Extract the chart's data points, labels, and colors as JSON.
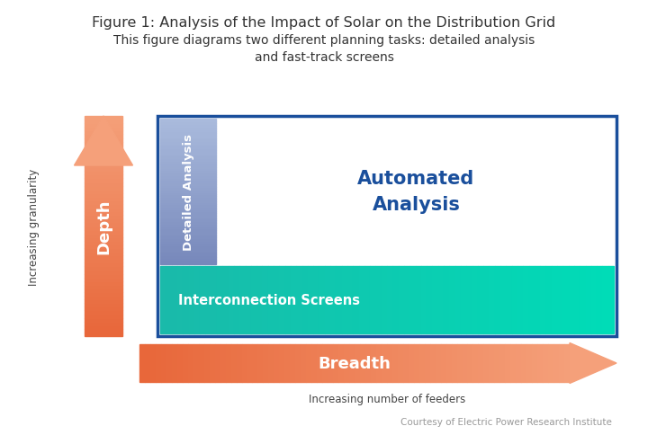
{
  "title": "Figure 1: Analysis of the Impact of Solar on the Distribution Grid",
  "subtitle": "This figure diagrams two different planning tasks: detailed analysis\nand fast-track screens",
  "title_fontsize": 11.5,
  "subtitle_fontsize": 10,
  "depth_label": "Depth",
  "breadth_label": "Breadth",
  "y_axis_label": "Increasing granularity",
  "x_axis_label": "Increasing number of feeders",
  "courtesy_text": "Courtesy of Electric Power Research Institute",
  "detailed_analysis_label": "Detailed Analysis",
  "automated_analysis_label": "Automated\nAnalysis",
  "interconnection_screens_label": "Interconnection Screens",
  "arrow_orange_dark": "#E8673A",
  "arrow_orange_light": "#F5A07A",
  "border_color": "#1A4F9C",
  "automated_analysis_text_color": "#1A4F9C",
  "background_color": "#FFFFFF",
  "fig_width": 7.2,
  "fig_height": 4.85,
  "fig_dpi": 100
}
